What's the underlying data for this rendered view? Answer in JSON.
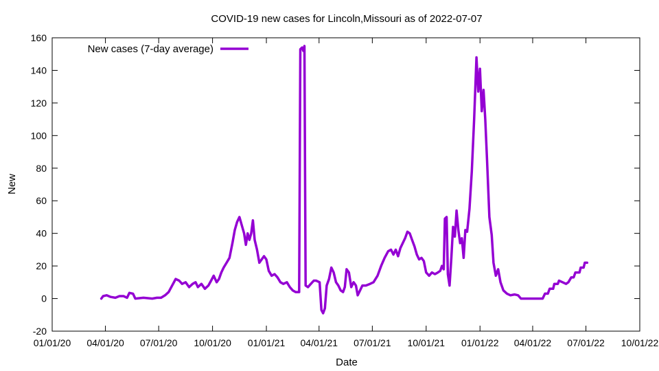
{
  "chart_data": {
    "type": "line",
    "title": "COVID-19 new cases for Lincoln,Missouri as of 2022-07-07",
    "xlabel": "Date",
    "ylabel": "New",
    "ylim": [
      -20,
      160
    ],
    "yticks": [
      -20,
      0,
      20,
      40,
      60,
      80,
      100,
      120,
      140,
      160
    ],
    "xlim": [
      "2020-01-01",
      "2022-10-01"
    ],
    "xticks": [
      {
        "date": "2020-01-01",
        "label": "01/01/20"
      },
      {
        "date": "2020-04-01",
        "label": "04/01/20"
      },
      {
        "date": "2020-07-01",
        "label": "07/01/20"
      },
      {
        "date": "2020-10-01",
        "label": "10/01/20"
      },
      {
        "date": "2021-01-01",
        "label": "01/01/21"
      },
      {
        "date": "2021-04-01",
        "label": "04/01/21"
      },
      {
        "date": "2021-07-01",
        "label": "07/01/21"
      },
      {
        "date": "2021-10-01",
        "label": "10/01/21"
      },
      {
        "date": "2022-01-01",
        "label": "01/01/22"
      },
      {
        "date": "2022-04-01",
        "label": "04/01/22"
      },
      {
        "date": "2022-07-01",
        "label": "07/01/22"
      },
      {
        "date": "2022-10-01",
        "label": "10/01/22"
      }
    ],
    "legend_position": "top-left",
    "series": [
      {
        "name": "New cases (7-day average)",
        "color": "#9400d3",
        "points": [
          [
            "2020-03-25",
            0
          ],
          [
            "2020-03-28",
            1.5
          ],
          [
            "2020-04-03",
            2
          ],
          [
            "2020-04-10",
            1
          ],
          [
            "2020-04-18",
            0.5
          ],
          [
            "2020-04-25",
            1.5
          ],
          [
            "2020-05-02",
            1.5
          ],
          [
            "2020-05-08",
            0.5
          ],
          [
            "2020-05-12",
            3.5
          ],
          [
            "2020-05-18",
            3
          ],
          [
            "2020-05-22",
            0
          ],
          [
            "2020-06-05",
            0.5
          ],
          [
            "2020-06-20",
            0
          ],
          [
            "2020-06-28",
            0.5
          ],
          [
            "2020-07-05",
            0.5
          ],
          [
            "2020-07-12",
            2
          ],
          [
            "2020-07-18",
            4
          ],
          [
            "2020-07-24",
            8
          ],
          [
            "2020-07-30",
            12
          ],
          [
            "2020-08-05",
            11
          ],
          [
            "2020-08-10",
            9
          ],
          [
            "2020-08-16",
            10
          ],
          [
            "2020-08-22",
            7
          ],
          [
            "2020-08-28",
            9
          ],
          [
            "2020-09-02",
            10
          ],
          [
            "2020-09-06",
            7
          ],
          [
            "2020-09-12",
            9
          ],
          [
            "2020-09-18",
            6
          ],
          [
            "2020-09-24",
            8
          ],
          [
            "2020-09-30",
            12
          ],
          [
            "2020-10-03",
            14
          ],
          [
            "2020-10-08",
            10
          ],
          [
            "2020-10-12",
            12
          ],
          [
            "2020-10-16",
            16
          ],
          [
            "2020-10-20",
            19
          ],
          [
            "2020-10-25",
            22
          ],
          [
            "2020-10-30",
            25
          ],
          [
            "2020-11-04",
            34
          ],
          [
            "2020-11-08",
            42
          ],
          [
            "2020-11-12",
            47
          ],
          [
            "2020-11-16",
            50
          ],
          [
            "2020-11-20",
            45
          ],
          [
            "2020-11-24",
            40
          ],
          [
            "2020-11-27",
            33
          ],
          [
            "2020-11-30",
            40
          ],
          [
            "2020-12-03",
            36
          ],
          [
            "2020-12-06",
            40
          ],
          [
            "2020-12-09",
            48
          ],
          [
            "2020-12-12",
            36
          ],
          [
            "2020-12-16",
            30
          ],
          [
            "2020-12-20",
            22
          ],
          [
            "2020-12-24",
            24
          ],
          [
            "2020-12-28",
            26
          ],
          [
            "2021-01-01",
            24
          ],
          [
            "2021-01-05",
            17
          ],
          [
            "2021-01-10",
            14
          ],
          [
            "2021-01-15",
            15
          ],
          [
            "2021-01-20",
            13
          ],
          [
            "2021-01-25",
            10
          ],
          [
            "2021-01-30",
            9
          ],
          [
            "2021-02-05",
            10
          ],
          [
            "2021-02-10",
            7
          ],
          [
            "2021-02-15",
            5
          ],
          [
            "2021-02-20",
            4
          ],
          [
            "2021-02-26",
            4
          ],
          [
            "2021-02-28",
            153
          ],
          [
            "2021-03-03",
            154
          ],
          [
            "2021-03-05",
            152
          ],
          [
            "2021-03-07",
            155
          ],
          [
            "2021-03-09",
            8
          ],
          [
            "2021-03-13",
            7
          ],
          [
            "2021-03-18",
            9
          ],
          [
            "2021-03-23",
            11
          ],
          [
            "2021-03-27",
            11
          ],
          [
            "2021-04-02",
            10
          ],
          [
            "2021-04-05",
            -7
          ],
          [
            "2021-04-08",
            -9
          ],
          [
            "2021-04-11",
            -6
          ],
          [
            "2021-04-14",
            8
          ],
          [
            "2021-04-18",
            12
          ],
          [
            "2021-04-22",
            19
          ],
          [
            "2021-04-26",
            16
          ],
          [
            "2021-04-30",
            10
          ],
          [
            "2021-05-04",
            8
          ],
          [
            "2021-05-08",
            5
          ],
          [
            "2021-05-12",
            4
          ],
          [
            "2021-05-15",
            7
          ],
          [
            "2021-05-18",
            18
          ],
          [
            "2021-05-22",
            16
          ],
          [
            "2021-05-26",
            7
          ],
          [
            "2021-05-30",
            10
          ],
          [
            "2021-06-03",
            8
          ],
          [
            "2021-06-06",
            2
          ],
          [
            "2021-06-10",
            5
          ],
          [
            "2021-06-14",
            8
          ],
          [
            "2021-06-20",
            8
          ],
          [
            "2021-06-27",
            9
          ],
          [
            "2021-07-03",
            10
          ],
          [
            "2021-07-10",
            14
          ],
          [
            "2021-07-16",
            20
          ],
          [
            "2021-07-22",
            25
          ],
          [
            "2021-07-28",
            29
          ],
          [
            "2021-08-02",
            30
          ],
          [
            "2021-08-06",
            27
          ],
          [
            "2021-08-10",
            30
          ],
          [
            "2021-08-14",
            26
          ],
          [
            "2021-08-18",
            31
          ],
          [
            "2021-08-22",
            34
          ],
          [
            "2021-08-26",
            37
          ],
          [
            "2021-08-30",
            41
          ],
          [
            "2021-09-03",
            40
          ],
          [
            "2021-09-07",
            36
          ],
          [
            "2021-09-11",
            32
          ],
          [
            "2021-09-15",
            27
          ],
          [
            "2021-09-19",
            24
          ],
          [
            "2021-09-23",
            25
          ],
          [
            "2021-09-27",
            23
          ],
          [
            "2021-10-01",
            16
          ],
          [
            "2021-10-06",
            14
          ],
          [
            "2021-10-11",
            16
          ],
          [
            "2021-10-16",
            15
          ],
          [
            "2021-10-21",
            16
          ],
          [
            "2021-10-25",
            17
          ],
          [
            "2021-10-28",
            20
          ],
          [
            "2021-10-31",
            18
          ],
          [
            "2021-11-02",
            49
          ],
          [
            "2021-11-05",
            50
          ],
          [
            "2021-11-07",
            15
          ],
          [
            "2021-11-10",
            8
          ],
          [
            "2021-11-13",
            25
          ],
          [
            "2021-11-16",
            44
          ],
          [
            "2021-11-19",
            38
          ],
          [
            "2021-11-22",
            54
          ],
          [
            "2021-11-25",
            42
          ],
          [
            "2021-11-28",
            34
          ],
          [
            "2021-12-01",
            37
          ],
          [
            "2021-12-04",
            25
          ],
          [
            "2021-12-07",
            42
          ],
          [
            "2021-12-10",
            41
          ],
          [
            "2021-12-14",
            55
          ],
          [
            "2021-12-18",
            78
          ],
          [
            "2021-12-22",
            110
          ],
          [
            "2021-12-26",
            148
          ],
          [
            "2021-12-29",
            127
          ],
          [
            "2022-01-01",
            141
          ],
          [
            "2022-01-04",
            115
          ],
          [
            "2022-01-07",
            128
          ],
          [
            "2022-01-10",
            110
          ],
          [
            "2022-01-13",
            85
          ],
          [
            "2022-01-17",
            50
          ],
          [
            "2022-01-21",
            39
          ],
          [
            "2022-01-24",
            22
          ],
          [
            "2022-01-28",
            14
          ],
          [
            "2022-02-01",
            18
          ],
          [
            "2022-02-05",
            10
          ],
          [
            "2022-02-10",
            5
          ],
          [
            "2022-02-16",
            3
          ],
          [
            "2022-02-22",
            2
          ],
          [
            "2022-03-01",
            2.5
          ],
          [
            "2022-03-07",
            2
          ],
          [
            "2022-03-12",
            0
          ],
          [
            "2022-03-20",
            0
          ],
          [
            "2022-04-01",
            0
          ],
          [
            "2022-04-10",
            0
          ],
          [
            "2022-04-18",
            0
          ],
          [
            "2022-04-22",
            3
          ],
          [
            "2022-04-27",
            3
          ],
          [
            "2022-04-30",
            6
          ],
          [
            "2022-05-06",
            6
          ],
          [
            "2022-05-08",
            9
          ],
          [
            "2022-05-14",
            9
          ],
          [
            "2022-05-16",
            11
          ],
          [
            "2022-05-22",
            10
          ],
          [
            "2022-05-28",
            9
          ],
          [
            "2022-06-01",
            10
          ],
          [
            "2022-06-06",
            13
          ],
          [
            "2022-06-10",
            13
          ],
          [
            "2022-06-13",
            16
          ],
          [
            "2022-06-20",
            16
          ],
          [
            "2022-06-22",
            19
          ],
          [
            "2022-06-27",
            19
          ],
          [
            "2022-06-29",
            22
          ],
          [
            "2022-07-03",
            22
          ]
        ]
      }
    ]
  }
}
